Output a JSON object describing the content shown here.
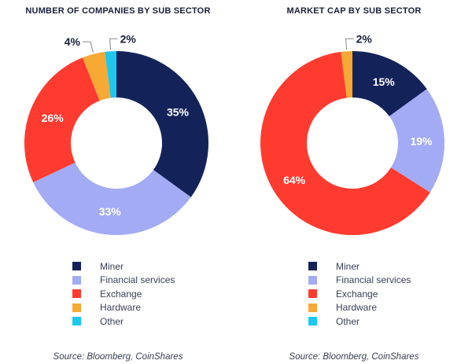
{
  "colors": {
    "Miner": "#13235a",
    "Financial services": "#a3abf5",
    "Exchange": "#ff3b30",
    "Hardware": "#f7a935",
    "Other": "#1cc8ee"
  },
  "legend_labels": [
    "Miner",
    "Financial services",
    "Exchange",
    "Hardware",
    "Other"
  ],
  "source": "Source: Bloomberg, CoinShares",
  "chart_data": [
    {
      "type": "pie",
      "title": "NUMBER OF COMPANIES BY SUB SECTOR",
      "slices": [
        {
          "label": "Miner",
          "value": 35,
          "text": "35%"
        },
        {
          "label": "Financial services",
          "value": 33,
          "text": "33%"
        },
        {
          "label": "Exchange",
          "value": 26,
          "text": "26%"
        },
        {
          "label": "Hardware",
          "value": 4,
          "text": "4%"
        },
        {
          "label": "Other",
          "value": 2,
          "text": "2%"
        }
      ]
    },
    {
      "type": "pie",
      "title": "MARKET CAP BY SUB SECTOR",
      "slices": [
        {
          "label": "Miner",
          "value": 15,
          "text": "15%"
        },
        {
          "label": "Financial services",
          "value": 19,
          "text": "19%"
        },
        {
          "label": "Exchange",
          "value": 64,
          "text": "64%"
        },
        {
          "label": "Hardware",
          "value": 2,
          "text": "2%"
        }
      ]
    }
  ]
}
